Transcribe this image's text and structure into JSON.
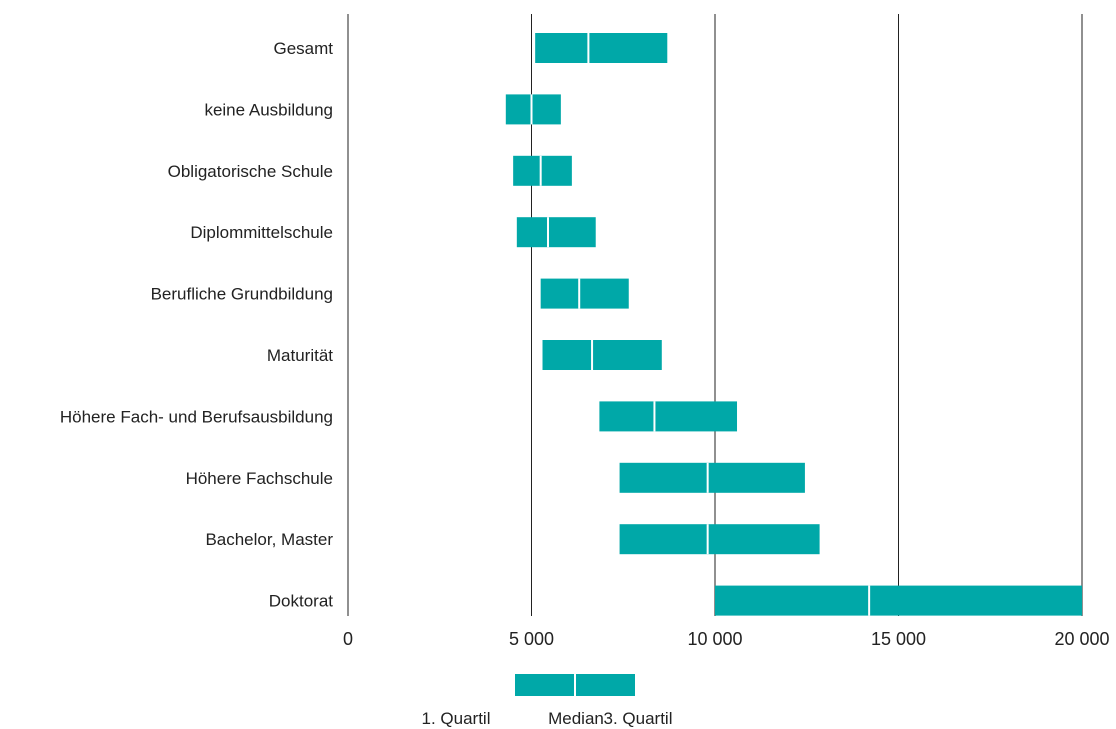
{
  "chart_data": {
    "type": "boxplot-horizontal",
    "categories": [
      "Gesamt",
      "keine Ausbildung",
      "Obligatorische Schule",
      "Diplommittelschule",
      "Berufliche Grundbildung",
      "Maturität",
      "Höhere Fach- und Berufsausbildung",
      "Höhere Fachschule",
      "Bachelor, Master",
      "Doktorat"
    ],
    "q1": [
      5100,
      4300,
      4500,
      4600,
      5250,
      5300,
      6850,
      7400,
      7400,
      10000
    ],
    "median": [
      6550,
      5000,
      5250,
      5450,
      6300,
      6650,
      8350,
      9800,
      9800,
      14200
    ],
    "q3": [
      8700,
      5800,
      6100,
      6750,
      7650,
      8550,
      10600,
      12450,
      12850,
      20000
    ],
    "x_ticks": [
      0,
      5000,
      10000,
      15000,
      20000
    ],
    "x_tick_labels": [
      "0",
      "5 000",
      "10 000",
      "15 000",
      "20 000"
    ],
    "xlim": [
      0,
      20000
    ],
    "gridlines": "vertical",
    "legend": {
      "position": "bottom-center",
      "labels": [
        "1. Quartil",
        "Median",
        "3. Quartil"
      ]
    }
  },
  "colors": {
    "box": "#00a8a8",
    "median_line": "#ffffff",
    "axis": "#222222",
    "text": "#222222"
  }
}
